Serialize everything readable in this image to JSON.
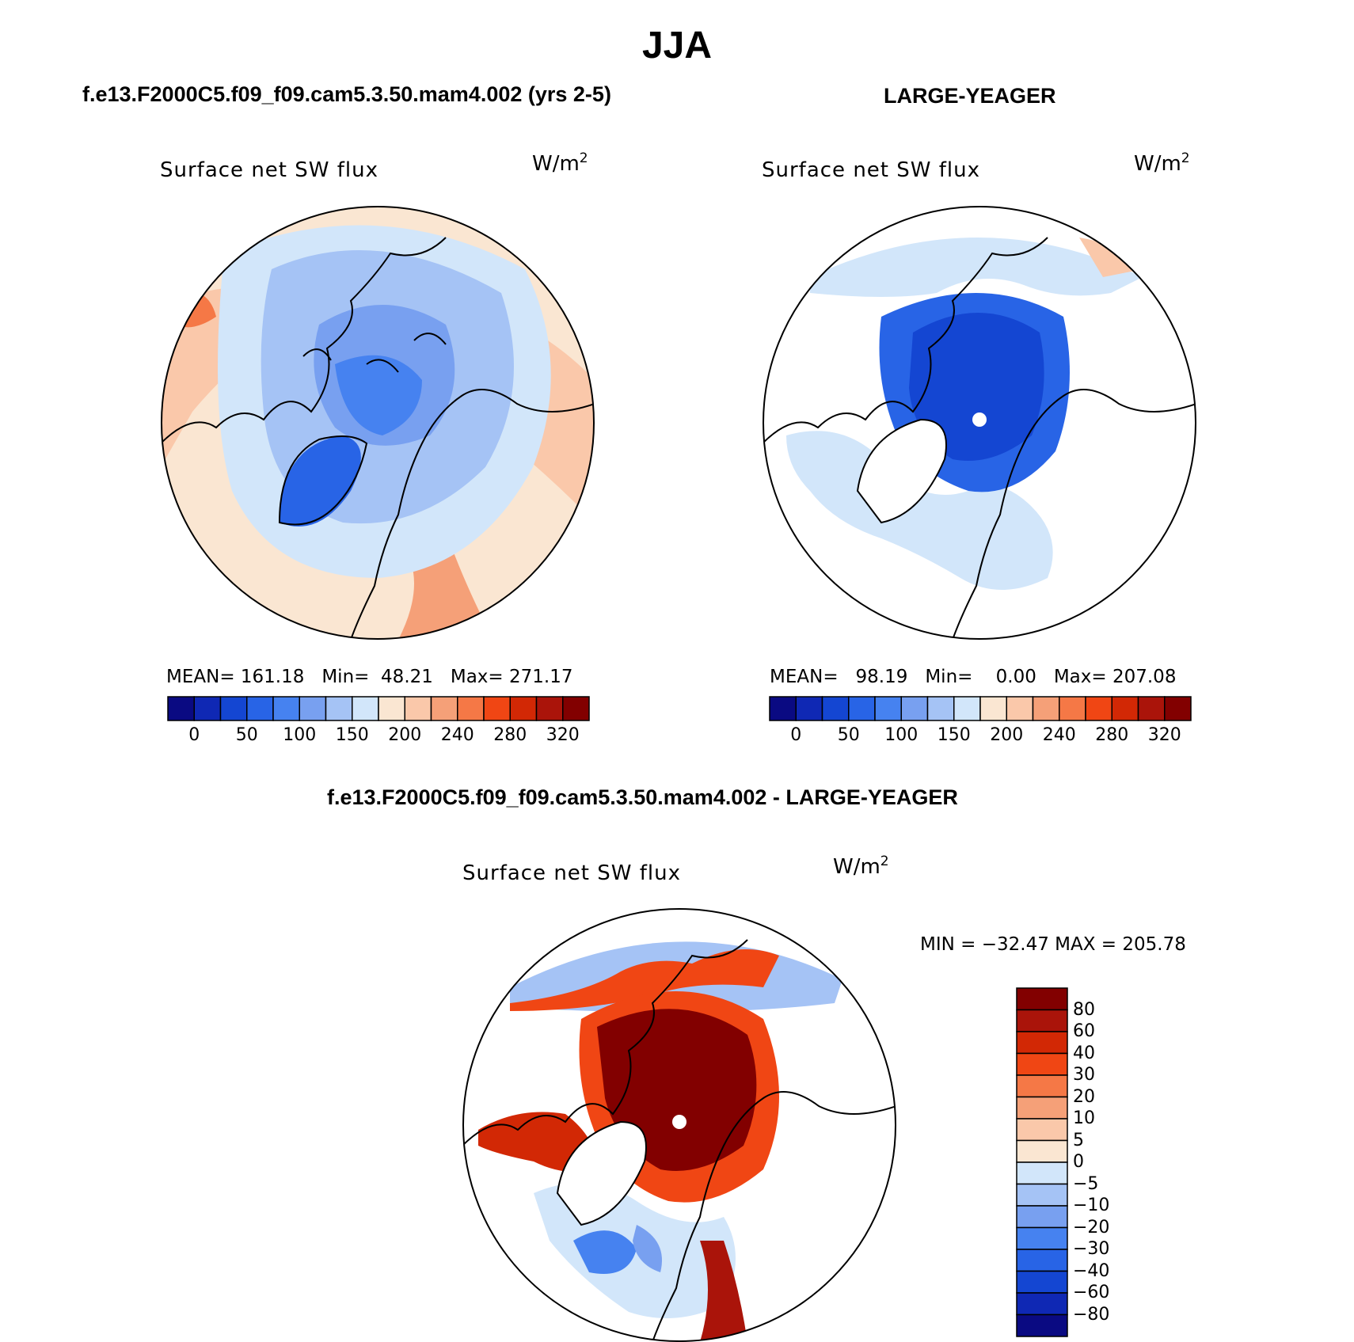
{
  "main_title": "JJA",
  "panel_left": {
    "case_title": "f.e13.F2000C5.f09_f09.cam5.3.50.mam4.002 (yrs 2-5)",
    "plot_title": "Surface net SW flux",
    "units_base": "W/m",
    "units_exp": "2",
    "stats": {
      "mean_label": "MEAN=",
      "mean": "161.18",
      "min_label": "Min=",
      "min": "48.21",
      "max_label": "Max=",
      "max": "271.17"
    }
  },
  "panel_right": {
    "case_title": "LARGE-YEAGER",
    "plot_title": "Surface net SW flux",
    "units_base": "W/m",
    "units_exp": "2",
    "stats": {
      "mean_label": "MEAN=",
      "mean": "98.19",
      "min_label": "Min=",
      "min": "0.00",
      "max_label": "Max=",
      "max": "207.08"
    }
  },
  "panel_diff": {
    "case_title": "f.e13.F2000C5.f09_f09.cam5.3.50.mam4.002 - LARGE-YEAGER",
    "plot_title": "Surface net SW flux",
    "units_base": "W/m",
    "units_exp": "2",
    "minmax": "MIN = −32.47 MAX = 205.78"
  },
  "chart_data": [
    {
      "type": "heatmap",
      "projection": "north-polar-stereographic",
      "title": "Surface net SW flux",
      "units": "W/m2",
      "case": "f.e13.F2000C5.f09_f09.cam5.3.50.mam4.002 (yrs 2-5)",
      "mean": 161.18,
      "min": 48.21,
      "max": 271.17,
      "colorbar": {
        "orientation": "horizontal",
        "colors": [
          "#0a0a82",
          "#0f28b4",
          "#1446d2",
          "#2864e6",
          "#4682f0",
          "#78a0f0",
          "#a5c3f5",
          "#d2e6fa",
          "#fae6d2",
          "#fac8aa",
          "#f5a078",
          "#f57846",
          "#f04614",
          "#d22805",
          "#aa140a",
          "#820000"
        ],
        "tick_labels": [
          "0",
          "50",
          "100",
          "150",
          "200",
          "240",
          "280",
          "320"
        ]
      }
    },
    {
      "type": "heatmap",
      "projection": "north-polar-stereographic",
      "title": "Surface net SW flux",
      "units": "W/m2",
      "case": "LARGE-YEAGER",
      "mean": 98.19,
      "min": 0.0,
      "max": 207.08,
      "colorbar": {
        "orientation": "horizontal",
        "colors": [
          "#0a0a82",
          "#0f28b4",
          "#1446d2",
          "#2864e6",
          "#4682f0",
          "#78a0f0",
          "#a5c3f5",
          "#d2e6fa",
          "#fae6d2",
          "#fac8aa",
          "#f5a078",
          "#f57846",
          "#f04614",
          "#d22805",
          "#aa140a",
          "#820000"
        ],
        "tick_labels": [
          "0",
          "50",
          "100",
          "150",
          "200",
          "240",
          "280",
          "320"
        ]
      }
    },
    {
      "type": "heatmap",
      "projection": "north-polar-stereographic",
      "title": "Surface net SW flux",
      "units": "W/m2",
      "case": "f.e13.F2000C5.f09_f09.cam5.3.50.mam4.002 - LARGE-YEAGER",
      "min": -32.47,
      "max": 205.78,
      "colorbar": {
        "orientation": "vertical",
        "colors_top_to_bottom": [
          "#820000",
          "#aa140a",
          "#d22805",
          "#f04614",
          "#f57846",
          "#f5a078",
          "#fac8aa",
          "#fae6d2",
          "#d2e6fa",
          "#a5c3f5",
          "#78a0f0",
          "#4682f0",
          "#2864e6",
          "#1446d2",
          "#0f28b4",
          "#0a0a82"
        ],
        "tick_labels_top_to_bottom": [
          "80",
          "60",
          "40",
          "30",
          "20",
          "10",
          "5",
          "0",
          "−5",
          "−10",
          "−20",
          "−30",
          "−40",
          "−60",
          "−80"
        ]
      }
    }
  ]
}
